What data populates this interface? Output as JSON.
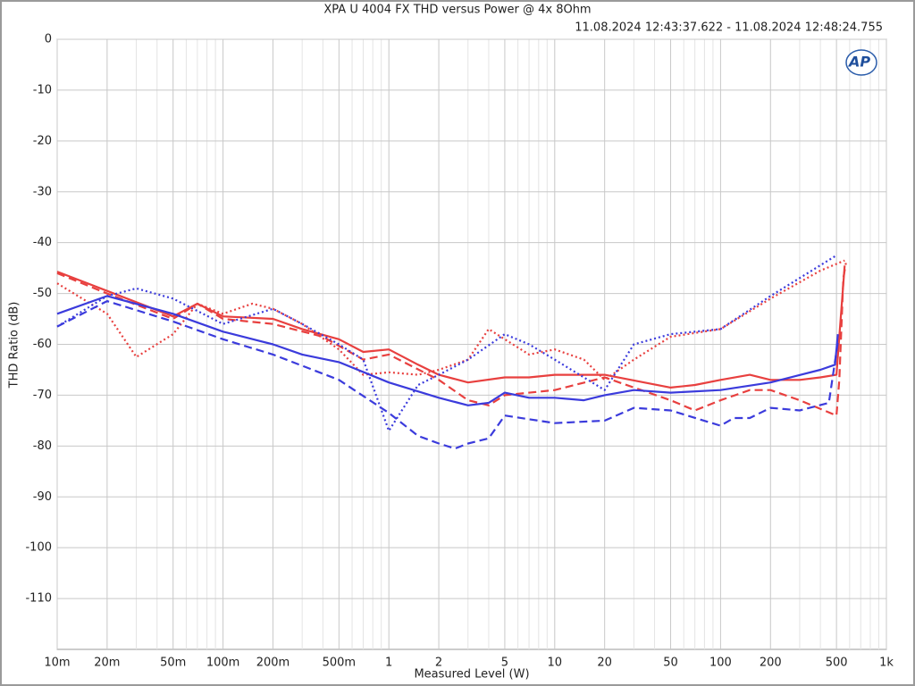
{
  "chart_data": {
    "type": "line",
    "title": "XPA U 4004 FX THD versus Power @ 4x 8Ohm",
    "subtitle": "11.08.2024 12:43:37.622 - 11.08.2024 12:48:24.755",
    "x_label": "Measured Level (W)",
    "y_label": "THD Ratio (dB)",
    "logo": "AP",
    "xscale": "log",
    "grid": true,
    "xlim": [
      0.01,
      1000
    ],
    "ylim": [
      -120,
      0
    ],
    "xticks": [
      {
        "value": 0.01,
        "label": "10m"
      },
      {
        "value": 0.02,
        "label": "20m"
      },
      {
        "value": 0.05,
        "label": "50m"
      },
      {
        "value": 0.1,
        "label": "100m"
      },
      {
        "value": 0.2,
        "label": "200m"
      },
      {
        "value": 0.5,
        "label": "500m"
      },
      1,
      2,
      5,
      10,
      20,
      50,
      100,
      200,
      500,
      {
        "value": 1000,
        "label": "1k"
      }
    ],
    "xminor": [
      0.03,
      0.04,
      0.06,
      0.07,
      0.08,
      0.09,
      0.3,
      0.4,
      0.6,
      0.7,
      0.8,
      0.9,
      3,
      4,
      6,
      7,
      8,
      9,
      30,
      40,
      60,
      70,
      80,
      90,
      300,
      400,
      600,
      700,
      800,
      900
    ],
    "yticks": [
      0,
      -10,
      -20,
      -30,
      -40,
      -50,
      -60,
      -70,
      -80,
      -90,
      -100,
      -110
    ],
    "series": [
      {
        "color": "#e8403f",
        "style": "solid",
        "x": [
          0.01,
          0.02,
          0.05,
          0.07,
          0.1,
          0.2,
          0.3,
          0.5,
          0.7,
          1,
          1.5,
          2,
          3,
          5,
          7,
          10,
          20,
          50,
          70,
          100,
          150,
          200,
          300,
          400,
          500,
          530,
          560
        ],
        "values": [
          -45.7,
          -49.5,
          -54.5,
          -52,
          -54.5,
          -55,
          -57,
          -59,
          -61.5,
          -61,
          -64,
          -66,
          -67.5,
          -66.5,
          -66.5,
          -66,
          -66,
          -68.5,
          -68,
          -67,
          -66,
          -67,
          -67,
          -66.5,
          -66,
          -55,
          -44.5
        ]
      },
      {
        "color": "#e8403f",
        "style": "dashed",
        "x": [
          0.01,
          0.02,
          0.05,
          0.07,
          0.1,
          0.2,
          0.4,
          0.7,
          1,
          2,
          3,
          4,
          5,
          10,
          20,
          50,
          70,
          100,
          150,
          200,
          300,
          500,
          520,
          550,
          570
        ],
        "values": [
          -46,
          -50,
          -55,
          -52,
          -55,
          -56,
          -58.5,
          -63,
          -62,
          -67,
          -71,
          -72,
          -70,
          -69,
          -66.5,
          -71,
          -73,
          -71,
          -69,
          -69,
          -71,
          -74,
          -67,
          -47,
          -44
        ]
      },
      {
        "color": "#e8403f",
        "style": "dotted",
        "x": [
          0.01,
          0.02,
          0.03,
          0.05,
          0.07,
          0.1,
          0.15,
          0.2,
          0.3,
          0.5,
          0.7,
          1,
          1.5,
          2,
          3,
          4,
          5,
          7,
          10,
          15,
          20,
          30,
          50,
          100,
          200,
          400,
          560
        ],
        "values": [
          -48,
          -54,
          -62.5,
          -58,
          -52,
          -54,
          -52,
          -53,
          -56,
          -61,
          -66,
          -65.5,
          -66,
          -65,
          -63,
          -57,
          -59,
          -62,
          -61,
          -63,
          -67,
          -63,
          -58.5,
          -57,
          -51,
          -45.5,
          -43.5
        ]
      },
      {
        "color": "#3b3bdc",
        "style": "solid",
        "x": [
          0.01,
          0.02,
          0.05,
          0.1,
          0.2,
          0.3,
          0.5,
          1,
          2,
          3,
          4,
          5,
          7,
          10,
          15,
          20,
          30,
          50,
          100,
          200,
          400,
          490,
          510
        ],
        "values": [
          -54,
          -50.5,
          -54,
          -57.5,
          -60,
          -62,
          -63.5,
          -67.5,
          -70.5,
          -72,
          -71.5,
          -69.5,
          -70.5,
          -70.5,
          -71,
          -70,
          -69,
          -69.5,
          -69,
          -67.5,
          -65,
          -64,
          -58
        ]
      },
      {
        "color": "#3b3bdc",
        "style": "dashed",
        "x": [
          0.01,
          0.02,
          0.05,
          0.1,
          0.2,
          0.5,
          1,
          1.5,
          2,
          2.5,
          3,
          4,
          5,
          10,
          20,
          30,
          50,
          100,
          120,
          150,
          200,
          300,
          450,
          510
        ],
        "values": [
          -56.5,
          -51.5,
          -55.5,
          -59,
          -62,
          -67,
          -73.5,
          -78,
          -79.5,
          -80.5,
          -79.5,
          -78.5,
          -74,
          -75.5,
          -75,
          -72.5,
          -73,
          -76,
          -74.5,
          -74.5,
          -72.5,
          -73,
          -71.5,
          -59.5
        ]
      },
      {
        "color": "#3b3bdc",
        "style": "dotted",
        "x": [
          0.01,
          0.02,
          0.03,
          0.05,
          0.1,
          0.2,
          0.3,
          0.5,
          0.7,
          1,
          1.5,
          2,
          3,
          5,
          7,
          10,
          20,
          30,
          50,
          100,
          200,
          500
        ],
        "values": [
          -56.5,
          -50.5,
          -49,
          -51,
          -56,
          -53,
          -56,
          -60,
          -63,
          -77,
          -68,
          -66,
          -63,
          -58,
          -60,
          -63,
          -69,
          -60,
          -58,
          -57,
          -50.5,
          -42.5
        ]
      }
    ]
  }
}
